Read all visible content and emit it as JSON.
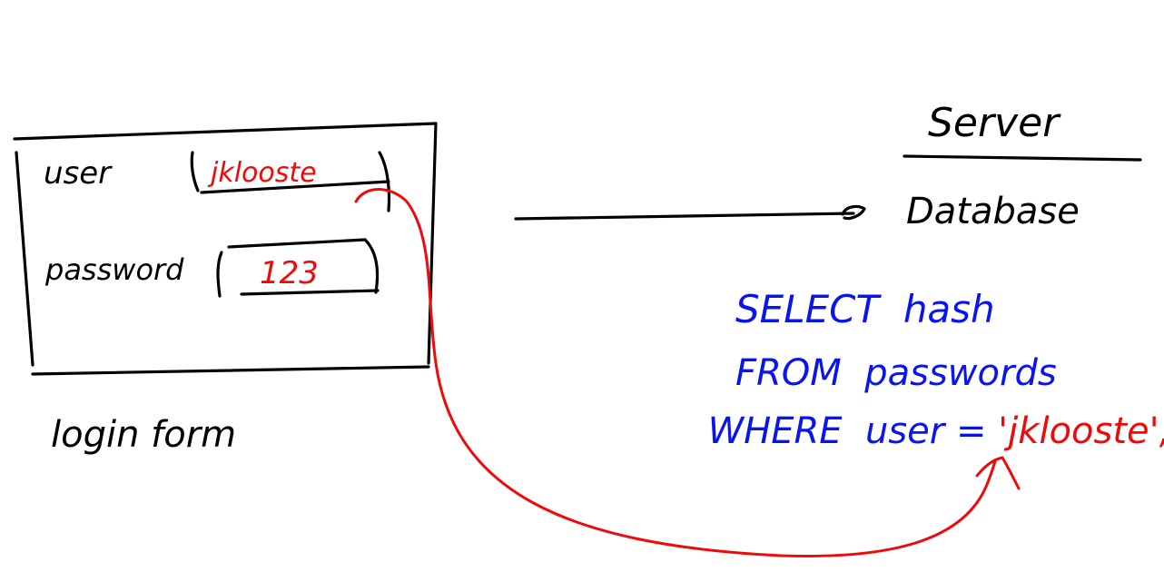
{
  "login_form": {
    "caption": "login form",
    "user_label": "user",
    "user_value": "jklooste",
    "password_label": "password",
    "password_value": "123"
  },
  "server": {
    "title": "Server",
    "database_label": "Database"
  },
  "query": {
    "line1": "SELECT  hash",
    "line2": "FROM  passwords",
    "line3_prefix": "WHERE  user = ",
    "line3_value": "'jklooste'",
    "line3_suffix": ";"
  },
  "colors": {
    "ink": "#000000",
    "sql": "#0a14ee",
    "input": "#ee0a0a"
  }
}
